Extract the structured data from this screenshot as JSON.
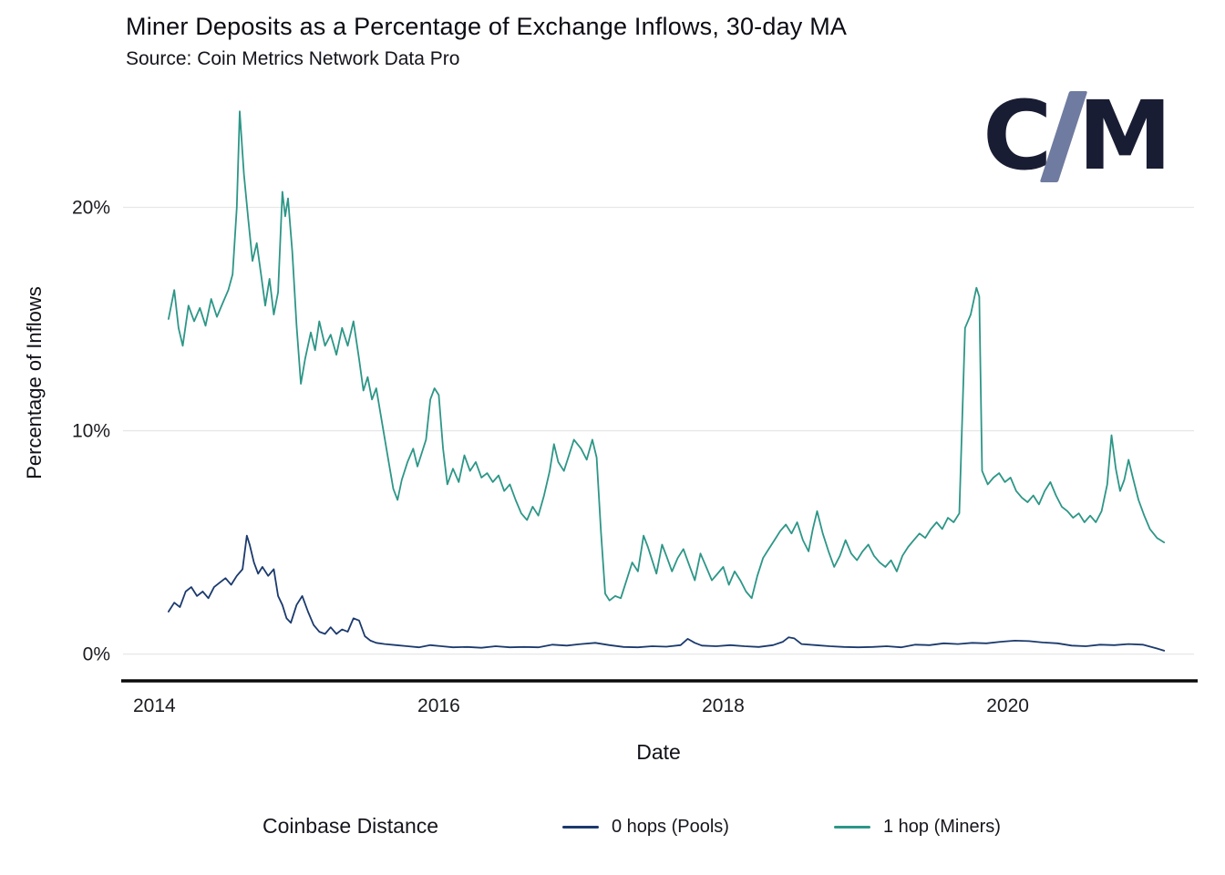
{
  "title": "Miner Deposits as a Percentage of Exchange Inflows, 30-day MA",
  "subtitle": "Source: Coin Metrics Network Data Pro",
  "logo": {
    "left": "C",
    "right": "M",
    "accent_color": "#6f7ba0",
    "text_color": "#191d33"
  },
  "axes": {
    "x_label": "Date",
    "y_label": "Percentage of Inflows"
  },
  "legend": {
    "title": "Coinbase Distance",
    "items": [
      {
        "label": "0 hops (Pools)",
        "color": "#1b3a6d"
      },
      {
        "label": "1 hop (Miners)",
        "color": "#2d9687"
      }
    ]
  },
  "chart_data": {
    "type": "line",
    "title": "Miner Deposits as a Percentage of Exchange Inflows, 30-day MA",
    "subtitle": "Source: Coin Metrics Network Data Pro",
    "xlabel": "Date",
    "ylabel": "Percentage of Inflows",
    "grid": "horizontal",
    "legend_position": "bottom",
    "x_axis": {
      "range": [
        2013.78,
        2021.31
      ],
      "ticks": [
        2014,
        2016,
        2018,
        2020
      ],
      "tick_labels": [
        "2014",
        "2016",
        "2018",
        "2020"
      ]
    },
    "y_axis": {
      "range": [
        -1.2,
        25.0
      ],
      "ticks": [
        0,
        10,
        20
      ],
      "tick_labels": [
        "0%",
        "10%",
        "20%"
      ]
    },
    "series": [
      {
        "name": "0 hops (Pools)",
        "color": "#1b3a6d",
        "points": [
          [
            2014.1,
            1.9
          ],
          [
            2014.14,
            2.3
          ],
          [
            2014.18,
            2.1
          ],
          [
            2014.22,
            2.8
          ],
          [
            2014.26,
            3.0
          ],
          [
            2014.3,
            2.6
          ],
          [
            2014.34,
            2.8
          ],
          [
            2014.38,
            2.5
          ],
          [
            2014.42,
            3.0
          ],
          [
            2014.46,
            3.2
          ],
          [
            2014.5,
            3.4
          ],
          [
            2014.54,
            3.1
          ],
          [
            2014.58,
            3.5
          ],
          [
            2014.62,
            3.8
          ],
          [
            2014.65,
            5.3
          ],
          [
            2014.67,
            4.9
          ],
          [
            2014.7,
            4.1
          ],
          [
            2014.73,
            3.6
          ],
          [
            2014.76,
            3.9
          ],
          [
            2014.8,
            3.5
          ],
          [
            2014.84,
            3.8
          ],
          [
            2014.87,
            2.6
          ],
          [
            2014.9,
            2.2
          ],
          [
            2014.93,
            1.6
          ],
          [
            2014.96,
            1.4
          ],
          [
            2015.0,
            2.2
          ],
          [
            2015.04,
            2.6
          ],
          [
            2015.08,
            1.9
          ],
          [
            2015.12,
            1.3
          ],
          [
            2015.16,
            1.0
          ],
          [
            2015.2,
            0.9
          ],
          [
            2015.24,
            1.2
          ],
          [
            2015.28,
            0.9
          ],
          [
            2015.32,
            1.1
          ],
          [
            2015.36,
            1.0
          ],
          [
            2015.4,
            1.6
          ],
          [
            2015.44,
            1.5
          ],
          [
            2015.48,
            0.8
          ],
          [
            2015.52,
            0.6
          ],
          [
            2015.56,
            0.5
          ],
          [
            2015.62,
            0.45
          ],
          [
            2015.7,
            0.4
          ],
          [
            2015.78,
            0.35
          ],
          [
            2015.86,
            0.3
          ],
          [
            2015.94,
            0.4
          ],
          [
            2016.02,
            0.35
          ],
          [
            2016.1,
            0.3
          ],
          [
            2016.2,
            0.32
          ],
          [
            2016.3,
            0.28
          ],
          [
            2016.4,
            0.35
          ],
          [
            2016.5,
            0.3
          ],
          [
            2016.6,
            0.32
          ],
          [
            2016.7,
            0.3
          ],
          [
            2016.8,
            0.42
          ],
          [
            2016.9,
            0.38
          ],
          [
            2017.0,
            0.45
          ],
          [
            2017.1,
            0.5
          ],
          [
            2017.2,
            0.4
          ],
          [
            2017.3,
            0.32
          ],
          [
            2017.4,
            0.3
          ],
          [
            2017.5,
            0.35
          ],
          [
            2017.6,
            0.33
          ],
          [
            2017.7,
            0.4
          ],
          [
            2017.75,
            0.68
          ],
          [
            2017.8,
            0.5
          ],
          [
            2017.85,
            0.38
          ],
          [
            2017.95,
            0.35
          ],
          [
            2018.05,
            0.4
          ],
          [
            2018.15,
            0.35
          ],
          [
            2018.25,
            0.32
          ],
          [
            2018.35,
            0.4
          ],
          [
            2018.42,
            0.55
          ],
          [
            2018.46,
            0.75
          ],
          [
            2018.5,
            0.7
          ],
          [
            2018.55,
            0.45
          ],
          [
            2018.65,
            0.4
          ],
          [
            2018.75,
            0.35
          ],
          [
            2018.85,
            0.32
          ],
          [
            2018.95,
            0.3
          ],
          [
            2019.05,
            0.32
          ],
          [
            2019.15,
            0.35
          ],
          [
            2019.25,
            0.3
          ],
          [
            2019.35,
            0.42
          ],
          [
            2019.45,
            0.4
          ],
          [
            2019.55,
            0.48
          ],
          [
            2019.65,
            0.45
          ],
          [
            2019.75,
            0.5
          ],
          [
            2019.85,
            0.48
          ],
          [
            2019.95,
            0.55
          ],
          [
            2020.05,
            0.6
          ],
          [
            2020.15,
            0.58
          ],
          [
            2020.25,
            0.52
          ],
          [
            2020.35,
            0.48
          ],
          [
            2020.45,
            0.38
          ],
          [
            2020.55,
            0.35
          ],
          [
            2020.65,
            0.42
          ],
          [
            2020.75,
            0.4
          ],
          [
            2020.85,
            0.45
          ],
          [
            2020.95,
            0.42
          ],
          [
            2021.05,
            0.25
          ],
          [
            2021.1,
            0.15
          ]
        ]
      },
      {
        "name": "1 hop (Miners)",
        "color": "#2d9687",
        "points": [
          [
            2014.1,
            15.0
          ],
          [
            2014.14,
            16.3
          ],
          [
            2014.17,
            14.6
          ],
          [
            2014.2,
            13.8
          ],
          [
            2014.24,
            15.6
          ],
          [
            2014.28,
            14.9
          ],
          [
            2014.32,
            15.5
          ],
          [
            2014.36,
            14.7
          ],
          [
            2014.4,
            15.9
          ],
          [
            2014.44,
            15.1
          ],
          [
            2014.48,
            15.7
          ],
          [
            2014.52,
            16.3
          ],
          [
            2014.55,
            17.0
          ],
          [
            2014.58,
            20.0
          ],
          [
            2014.6,
            24.3
          ],
          [
            2014.63,
            21.5
          ],
          [
            2014.66,
            19.5
          ],
          [
            2014.69,
            17.6
          ],
          [
            2014.72,
            18.4
          ],
          [
            2014.75,
            17.0
          ],
          [
            2014.78,
            15.6
          ],
          [
            2014.81,
            16.8
          ],
          [
            2014.84,
            15.2
          ],
          [
            2014.87,
            16.2
          ],
          [
            2014.9,
            20.7
          ],
          [
            2014.92,
            19.6
          ],
          [
            2014.94,
            20.4
          ],
          [
            2014.97,
            18.0
          ],
          [
            2015.0,
            14.7
          ],
          [
            2015.03,
            12.1
          ],
          [
            2015.06,
            13.2
          ],
          [
            2015.1,
            14.4
          ],
          [
            2015.13,
            13.6
          ],
          [
            2015.16,
            14.9
          ],
          [
            2015.2,
            13.8
          ],
          [
            2015.24,
            14.3
          ],
          [
            2015.28,
            13.4
          ],
          [
            2015.32,
            14.6
          ],
          [
            2015.36,
            13.8
          ],
          [
            2015.4,
            14.9
          ],
          [
            2015.44,
            13.2
          ],
          [
            2015.47,
            11.8
          ],
          [
            2015.5,
            12.4
          ],
          [
            2015.53,
            11.4
          ],
          [
            2015.56,
            11.9
          ],
          [
            2015.6,
            10.4
          ],
          [
            2015.64,
            8.9
          ],
          [
            2015.68,
            7.4
          ],
          [
            2015.71,
            6.9
          ],
          [
            2015.74,
            7.8
          ],
          [
            2015.78,
            8.6
          ],
          [
            2015.82,
            9.2
          ],
          [
            2015.85,
            8.4
          ],
          [
            2015.88,
            9.0
          ],
          [
            2015.91,
            9.6
          ],
          [
            2015.94,
            11.4
          ],
          [
            2015.97,
            11.9
          ],
          [
            2016.0,
            11.6
          ],
          [
            2016.03,
            9.2
          ],
          [
            2016.06,
            7.6
          ],
          [
            2016.1,
            8.3
          ],
          [
            2016.14,
            7.7
          ],
          [
            2016.18,
            8.9
          ],
          [
            2016.22,
            8.2
          ],
          [
            2016.26,
            8.6
          ],
          [
            2016.3,
            7.9
          ],
          [
            2016.34,
            8.1
          ],
          [
            2016.38,
            7.7
          ],
          [
            2016.42,
            8.0
          ],
          [
            2016.46,
            7.3
          ],
          [
            2016.5,
            7.6
          ],
          [
            2016.54,
            6.9
          ],
          [
            2016.58,
            6.3
          ],
          [
            2016.62,
            6.0
          ],
          [
            2016.66,
            6.6
          ],
          [
            2016.7,
            6.2
          ],
          [
            2016.74,
            7.1
          ],
          [
            2016.78,
            8.2
          ],
          [
            2016.81,
            9.4
          ],
          [
            2016.84,
            8.6
          ],
          [
            2016.88,
            8.2
          ],
          [
            2016.92,
            9.0
          ],
          [
            2016.95,
            9.6
          ],
          [
            2017.0,
            9.2
          ],
          [
            2017.04,
            8.7
          ],
          [
            2017.08,
            9.6
          ],
          [
            2017.11,
            8.8
          ],
          [
            2017.14,
            5.5
          ],
          [
            2017.17,
            2.7
          ],
          [
            2017.2,
            2.4
          ],
          [
            2017.24,
            2.6
          ],
          [
            2017.28,
            2.5
          ],
          [
            2017.32,
            3.3
          ],
          [
            2017.36,
            4.1
          ],
          [
            2017.4,
            3.7
          ],
          [
            2017.44,
            5.3
          ],
          [
            2017.47,
            4.8
          ],
          [
            2017.5,
            4.2
          ],
          [
            2017.53,
            3.6
          ],
          [
            2017.57,
            4.9
          ],
          [
            2017.6,
            4.4
          ],
          [
            2017.64,
            3.7
          ],
          [
            2017.68,
            4.3
          ],
          [
            2017.72,
            4.7
          ],
          [
            2017.76,
            4.0
          ],
          [
            2017.8,
            3.3
          ],
          [
            2017.84,
            4.5
          ],
          [
            2017.88,
            3.9
          ],
          [
            2017.92,
            3.3
          ],
          [
            2017.96,
            3.6
          ],
          [
            2018.0,
            3.9
          ],
          [
            2018.04,
            3.1
          ],
          [
            2018.08,
            3.7
          ],
          [
            2018.12,
            3.3
          ],
          [
            2018.16,
            2.8
          ],
          [
            2018.2,
            2.5
          ],
          [
            2018.24,
            3.5
          ],
          [
            2018.28,
            4.3
          ],
          [
            2018.32,
            4.7
          ],
          [
            2018.36,
            5.1
          ],
          [
            2018.4,
            5.5
          ],
          [
            2018.44,
            5.8
          ],
          [
            2018.48,
            5.4
          ],
          [
            2018.52,
            5.9
          ],
          [
            2018.56,
            5.1
          ],
          [
            2018.6,
            4.6
          ],
          [
            2018.63,
            5.6
          ],
          [
            2018.66,
            6.4
          ],
          [
            2018.7,
            5.4
          ],
          [
            2018.74,
            4.6
          ],
          [
            2018.78,
            3.9
          ],
          [
            2018.82,
            4.4
          ],
          [
            2018.86,
            5.1
          ],
          [
            2018.9,
            4.5
          ],
          [
            2018.94,
            4.2
          ],
          [
            2018.98,
            4.6
          ],
          [
            2019.02,
            4.9
          ],
          [
            2019.06,
            4.4
          ],
          [
            2019.1,
            4.1
          ],
          [
            2019.14,
            3.9
          ],
          [
            2019.18,
            4.2
          ],
          [
            2019.22,
            3.7
          ],
          [
            2019.26,
            4.4
          ],
          [
            2019.3,
            4.8
          ],
          [
            2019.34,
            5.1
          ],
          [
            2019.38,
            5.4
          ],
          [
            2019.42,
            5.2
          ],
          [
            2019.46,
            5.6
          ],
          [
            2019.5,
            5.9
          ],
          [
            2019.54,
            5.6
          ],
          [
            2019.58,
            6.1
          ],
          [
            2019.62,
            5.9
          ],
          [
            2019.66,
            6.3
          ],
          [
            2019.7,
            14.6
          ],
          [
            2019.74,
            15.2
          ],
          [
            2019.78,
            16.4
          ],
          [
            2019.8,
            16.0
          ],
          [
            2019.82,
            8.2
          ],
          [
            2019.86,
            7.6
          ],
          [
            2019.9,
            7.9
          ],
          [
            2019.94,
            8.1
          ],
          [
            2019.98,
            7.7
          ],
          [
            2020.02,
            7.9
          ],
          [
            2020.06,
            7.3
          ],
          [
            2020.1,
            7.0
          ],
          [
            2020.14,
            6.8
          ],
          [
            2020.18,
            7.1
          ],
          [
            2020.22,
            6.7
          ],
          [
            2020.26,
            7.3
          ],
          [
            2020.3,
            7.7
          ],
          [
            2020.34,
            7.1
          ],
          [
            2020.38,
            6.6
          ],
          [
            2020.42,
            6.4
          ],
          [
            2020.46,
            6.1
          ],
          [
            2020.5,
            6.3
          ],
          [
            2020.54,
            5.9
          ],
          [
            2020.58,
            6.2
          ],
          [
            2020.62,
            5.9
          ],
          [
            2020.66,
            6.4
          ],
          [
            2020.7,
            7.6
          ],
          [
            2020.73,
            9.8
          ],
          [
            2020.76,
            8.3
          ],
          [
            2020.79,
            7.3
          ],
          [
            2020.82,
            7.8
          ],
          [
            2020.85,
            8.7
          ],
          [
            2020.88,
            7.9
          ],
          [
            2020.92,
            6.9
          ],
          [
            2020.96,
            6.2
          ],
          [
            2021.0,
            5.6
          ],
          [
            2021.05,
            5.2
          ],
          [
            2021.1,
            5.0
          ]
        ]
      }
    ]
  }
}
